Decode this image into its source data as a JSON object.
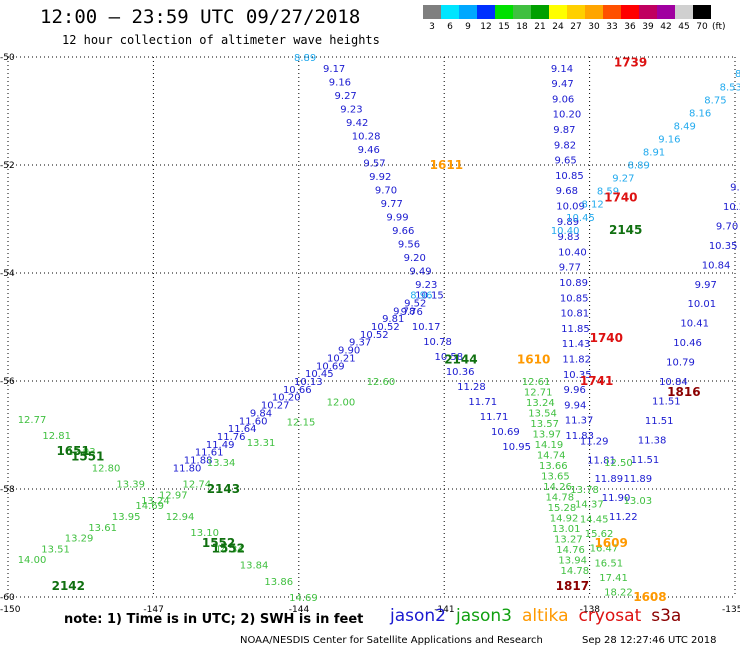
{
  "header": {
    "title": "12:00 – 23:59 UTC 09/27/2018",
    "subtitle": "12 hour collection of altimeter wave heights"
  },
  "color_scale": {
    "unit_label": "(ft)",
    "labels": [
      "3",
      "6",
      "9",
      "12",
      "15",
      "18",
      "21",
      "24",
      "27",
      "30",
      "33",
      "36",
      "39",
      "42",
      "45",
      "70"
    ],
    "colors": [
      "#7f7f7f",
      "#00e5ff",
      "#00a8ff",
      "#0030ff",
      "#00e000",
      "#40c040",
      "#00a000",
      "#ffff00",
      "#ffd000",
      "#ffa500",
      "#ff5000",
      "#ff0000",
      "#c00060",
      "#a000a0",
      "#d0d0d0",
      "#000000"
    ]
  },
  "axes": {
    "lat_labels": [
      "-50",
      "-52",
      "-54",
      "-56",
      "-58",
      "-60"
    ],
    "lon_labels": [
      "-150",
      "-147",
      "-144",
      "-141",
      "-138",
      "-135"
    ],
    "lat_range": [
      -60,
      -50
    ],
    "lon_range": [
      -150,
      -135
    ]
  },
  "tracks": [
    {
      "sat": "jason2",
      "color": "#1a1ad0",
      "lon": [
        -146.6,
        -141.6
      ],
      "lat": [
        -57.6,
        -54.4
      ],
      "values": [
        "11.80",
        "11.88",
        "11.61",
        "11.49",
        "11.76",
        "11.64",
        "11.60",
        "9.84",
        "10.27",
        "10.20",
        "10.66",
        "10.13",
        "10.45",
        "10.69",
        "10.21",
        "9.90",
        "9.37",
        "10.52",
        "10.52",
        "9.81",
        "9.78",
        "9.52",
        "10.15"
      ]
    },
    {
      "sat": "jason2",
      "color": "#1a1ad0",
      "lon": [
        -143.5,
        -141.6
      ],
      "lat": [
        -50.2,
        -54.2
      ],
      "values": [
        "9.17",
        "9.16",
        "9.27",
        "9.23",
        "9.42",
        "10.28",
        "9.46",
        "9.57",
        "9.92",
        "9.70",
        "9.77",
        "9.99",
        "9.66",
        "9.56",
        "9.20",
        "9.49",
        "9.23"
      ]
    },
    {
      "sat": "jason2",
      "color": "#1a1ad0",
      "lon": [
        -141.9,
        -139.8
      ],
      "lat": [
        -54.7,
        -57.2
      ],
      "values": [
        "9.76",
        "10.17",
        "10.78",
        "10.58",
        "10.36",
        "11.28",
        "11.71",
        "11.71",
        "10.69",
        "10.95"
      ]
    },
    {
      "sat": "jason2",
      "color": "#1a1ad0",
      "lon": [
        -138.8,
        -138.5
      ],
      "lat": [
        -50.2,
        -57.0
      ],
      "values": [
        "9.14",
        "9.47",
        "9.06",
        "10.20",
        "9.87",
        "9.82",
        "9.65",
        "10.85",
        "9.68",
        "10.09",
        "9.89",
        "9.83",
        "10.40",
        "9.77",
        "10.89",
        "10.85",
        "10.81",
        "11.85",
        "11.43",
        "11.82",
        "10.35",
        "9.96",
        "9.94",
        "11.37",
        "11.83"
      ]
    },
    {
      "sat": "jason2",
      "color": "#1a1ad0",
      "lon": [
        -138.2,
        -137.6
      ],
      "lat": [
        -57.1,
        -58.5
      ],
      "values": [
        "11.29",
        "11.81",
        "11.89",
        "11.90",
        "11.22"
      ]
    },
    {
      "sat": "jason2",
      "color": "#1a1ad0",
      "lon": [
        -135.1,
        -137.3
      ],
      "lat": [
        -52.4,
        -57.8
      ],
      "values": [
        "9.85",
        "10.22",
        "9.70",
        "10.35",
        "10.84",
        "9.97",
        "10.01",
        "10.41",
        "10.46",
        "10.79",
        "10.84",
        "11.51",
        "11.51",
        "11.38",
        "11.51",
        "11.89"
      ]
    },
    {
      "sat": "jason3",
      "color": "#40c040",
      "lon": [
        -149.8,
        -144.2
      ],
      "lat": [
        -56.7,
        -60.0
      ],
      "values": [
        "12.77",
        "12.81",
        "12.93",
        "12.80",
        "13.39",
        "13.24",
        "12.94",
        "13.10",
        "14.34",
        "13.84",
        "13.86",
        "14.69"
      ]
    },
    {
      "sat": "jason3",
      "color": "#40c040",
      "lon": [
        -149.8,
        -146.4
      ],
      "lat": [
        -59.3,
        -57.9
      ],
      "values": [
        "14.00",
        "13.51",
        "13.29",
        "13.61",
        "13.95",
        "14.69",
        "12.97",
        "12.74"
      ]
    },
    {
      "sat": "jason3",
      "color": "#40c040",
      "lon": [
        -145.9,
        -142.6
      ],
      "lat": [
        -57.5,
        -56.0
      ],
      "values": [
        "13.34",
        "13.31",
        "12.15",
        "12.00",
        "12.60"
      ]
    },
    {
      "sat": "jason3",
      "color": "#40c040",
      "lon": [
        -139.4,
        -138.6
      ],
      "lat": [
        -56.0,
        -59.5
      ],
      "values": [
        "12.61",
        "12.71",
        "13.24",
        "13.54",
        "13.57",
        "13.97",
        "14.19",
        "14.74",
        "13.66",
        "13.65",
        "14.26",
        "14.78",
        "15.28",
        "14.92",
        "13.01",
        "13.27",
        "14.76",
        "13.94",
        "14.78"
      ]
    },
    {
      "sat": "jason3",
      "color": "#40c040",
      "lon": [
        -138.4,
        -137.7
      ],
      "lat": [
        -58.0,
        -59.9
      ],
      "values": [
        "13.78",
        "14.37",
        "14.45",
        "15.62",
        "16.47",
        "16.51",
        "17.41",
        "18.22"
      ]
    },
    {
      "sat": "jason3",
      "color": "#40c040",
      "lon": [
        -137.7,
        -137.3
      ],
      "lat": [
        -57.5,
        -58.2
      ],
      "values": [
        "12.50",
        "13.03"
      ]
    },
    {
      "sat": "s3a_cyan",
      "color": "#22aaee",
      "lon": [
        -138.8,
        -135.0
      ],
      "lat": [
        -53.2,
        -50.3
      ],
      "values": [
        "10.40",
        "10.45",
        "8.12",
        "8.59",
        "9.27",
        "8.89",
        "8.91",
        "9.16",
        "8.49",
        "8.16",
        "8.75",
        "8.53",
        "8.94"
      ]
    },
    {
      "sat": "s3a_cyan",
      "color": "#22aaee",
      "lon": [
        -141.7,
        -141.7
      ],
      "lat": [
        -54.4,
        -54.4
      ],
      "values": [
        "8.96"
      ]
    }
  ],
  "time_labels": [
    {
      "text": "1739",
      "color": "#dd1111",
      "lon": -137.5,
      "lat": -50.1
    },
    {
      "text": "1611",
      "color": "#ff9900",
      "lon": -141.3,
      "lat": -52.0
    },
    {
      "text": "1740",
      "color": "#dd1111",
      "lon": -137.7,
      "lat": -52.6
    },
    {
      "text": "2145",
      "color": "#107010",
      "lon": -137.6,
      "lat": -53.2
    },
    {
      "text": "1740",
      "color": "#dd1111",
      "lon": -138.0,
      "lat": -55.2
    },
    {
      "text": "2144",
      "color": "#107010",
      "lon": -141.0,
      "lat": -55.6
    },
    {
      "text": "1610",
      "color": "#ff9900",
      "lon": -139.5,
      "lat": -55.6
    },
    {
      "text": "1741",
      "color": "#dd1111",
      "lon": -138.2,
      "lat": -56.0
    },
    {
      "text": "1816",
      "color": "#8b0000",
      "lon": -136.4,
      "lat": -56.2
    },
    {
      "text": "1651",
      "color": "#107010",
      "lon": -149.0,
      "lat": -57.3
    },
    {
      "text": "1551",
      "color": "#107010",
      "lon": -148.7,
      "lat": -57.4
    },
    {
      "text": "2143",
      "color": "#107010",
      "lon": -145.9,
      "lat": -58.0
    },
    {
      "text": "1552",
      "color": "#107010",
      "lon": -146.0,
      "lat": -59.0
    },
    {
      "text": "1552",
      "color": "#107010",
      "lon": -145.8,
      "lat": -59.1
    },
    {
      "text": "2142",
      "color": "#107010",
      "lon": -149.1,
      "lat": -59.8
    },
    {
      "text": "1609",
      "color": "#ff9900",
      "lon": -137.9,
      "lat": -59.0
    },
    {
      "text": "1817",
      "color": "#8b0000",
      "lon": -138.7,
      "lat": -59.8
    },
    {
      "text": "1608",
      "color": "#ff9900",
      "lon": -137.1,
      "lat": -60.0
    },
    {
      "text": "8.89",
      "color": "#22aaee",
      "lon": -144.1,
      "lat": -50.0
    }
  ],
  "footer": {
    "note": "note:  1) Time is in UTC;  2) SWH is in feet",
    "satellites": [
      {
        "name": "jason2",
        "color": "#1a1ad0"
      },
      {
        "name": "jason3",
        "color": "#10a010"
      },
      {
        "name": "altika",
        "color": "#ff9900"
      },
      {
        "name": "cryosat",
        "color": "#dd1111"
      },
      {
        "name": "s3a",
        "color": "#8b0000"
      }
    ],
    "credit": "NOAA/NESDIS Center for Satellite Applications and Research",
    "timestamp": "Sep 28 12:27:46 UTC 2018"
  }
}
